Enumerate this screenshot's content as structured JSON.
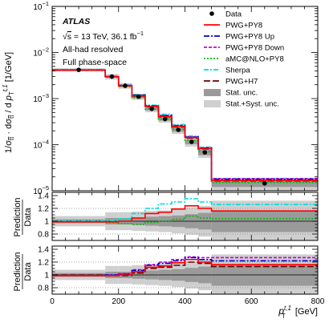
{
  "chart_data": {
    "type": "line",
    "x_edges": [
      0,
      160,
      200,
      240,
      280,
      320,
      360,
      400,
      440,
      480,
      800
    ],
    "x_centers": [
      80,
      180,
      220,
      260,
      300,
      340,
      380,
      420,
      460,
      640
    ],
    "xlim": [
      0,
      800
    ],
    "x_ticks": [
      0,
      200,
      400,
      600,
      800
    ],
    "x_tick_labels": [
      "0",
      "200",
      "400",
      "600",
      "800"
    ],
    "x_label_main": "p",
    "x_label_sub": "T",
    "x_label_sup": "t,1",
    "x_label_unit": " [GeV]",
    "top_panel": {
      "y_scale": "log",
      "ylim": [
        1e-05,
        0.1
      ],
      "y_ticks": [
        1e-05,
        0.0001,
        0.001,
        0.01,
        0.1
      ],
      "y_tick_labels": [
        {
          "base": "10",
          "exp": "−5"
        },
        {
          "base": "10",
          "exp": "−4"
        },
        {
          "base": "10",
          "exp": "−3"
        },
        {
          "base": "10",
          "exp": "−2"
        },
        {
          "base": "10",
          "exp": "−1"
        }
      ],
      "y_label": "1/σ_tt · dσ_tt / d p_T^t,1 [1/GeV]",
      "data": [
        0.0042,
        0.003,
        0.0019,
        0.0011,
        0.0006,
        0.00036,
        0.00021,
        0.000115,
        6.8e-05,
        1.45e-05
      ],
      "stat_unc_rel": [
        0.03,
        0.05,
        0.05,
        0.06,
        0.07,
        0.08,
        0.09,
        0.11,
        0.13,
        0.17
      ],
      "total_unc_rel": [
        0.08,
        0.14,
        0.14,
        0.15,
        0.16,
        0.17,
        0.19,
        0.21,
        0.24,
        0.32
      ]
    },
    "ratio_panel_1": {
      "ylabel_top": "Prediction",
      "ylabel_bottom": "Data",
      "ylim": [
        0.7,
        1.45
      ],
      "y_ticks": [
        0.8,
        1.0,
        1.2,
        1.4
      ],
      "y_tick_labels": [
        "0.8",
        "1",
        "1.2",
        "1.4"
      ],
      "stat_band": [
        0.03,
        0.05,
        0.05,
        0.06,
        0.07,
        0.08,
        0.09,
        0.11,
        0.13,
        0.17
      ],
      "total_band": [
        0.08,
        0.14,
        0.14,
        0.15,
        0.16,
        0.17,
        0.19,
        0.21,
        0.24,
        0.32
      ],
      "series": [
        {
          "name": "PWG+PY8",
          "values": [
            0.99,
            0.99,
            1.0,
            1.05,
            1.12,
            1.14,
            1.19,
            1.24,
            1.2,
            1.16
          ]
        },
        {
          "name": "Sherpa",
          "values": [
            1.0,
            1.0,
            1.04,
            1.12,
            1.2,
            1.27,
            1.3,
            1.35,
            1.3,
            1.26
          ]
        },
        {
          "name": "aMC@NLO+PY8",
          "values": [
            0.99,
            0.98,
            0.96,
            0.95,
            0.98,
            1.0,
            1.03,
            1.08,
            1.05,
            1.04
          ]
        }
      ]
    },
    "ratio_panel_2": {
      "ylabel_top": "Prediction",
      "ylabel_bottom": "Data",
      "ylim": [
        0.7,
        1.45
      ],
      "y_ticks": [
        0.8,
        1.0,
        1.2,
        1.4
      ],
      "y_tick_labels": [
        "0.8",
        "1",
        "1.2",
        "1.4"
      ],
      "stat_band": [
        0.03,
        0.05,
        0.05,
        0.06,
        0.07,
        0.08,
        0.09,
        0.11,
        0.13,
        0.17
      ],
      "total_band": [
        0.08,
        0.14,
        0.14,
        0.15,
        0.16,
        0.17,
        0.19,
        0.21,
        0.24,
        0.32
      ],
      "series": [
        {
          "name": "PWG+PY8",
          "values": [
            0.99,
            0.99,
            1.0,
            1.05,
            1.12,
            1.14,
            1.19,
            1.24,
            1.2,
            1.16
          ]
        },
        {
          "name": "PWG+PY8 Up",
          "values": [
            0.99,
            1.0,
            1.01,
            1.07,
            1.15,
            1.18,
            1.22,
            1.27,
            1.24,
            1.22
          ]
        },
        {
          "name": "PWG+PY8 Down",
          "values": [
            0.99,
            1.0,
            1.02,
            1.08,
            1.16,
            1.2,
            1.24,
            1.28,
            1.27,
            1.27
          ]
        },
        {
          "name": "PWG+H7",
          "values": [
            1.0,
            0.99,
            0.99,
            1.03,
            1.1,
            1.12,
            1.15,
            1.2,
            1.18,
            1.13
          ]
        }
      ]
    },
    "series_styles": [
      {
        "name": "PWG+PY8",
        "color": "#ff0000",
        "dash": ""
      },
      {
        "name": "PWG+PY8 Up",
        "color": "#0000cc",
        "dash": "7,2,2,2"
      },
      {
        "name": "PWG+PY8 Down",
        "color": "#cc00cc",
        "dash": "4,2"
      },
      {
        "name": "aMC@NLO+PY8",
        "color": "#00bb00",
        "dash": "2,2"
      },
      {
        "name": "Sherpa",
        "color": "#00dddd",
        "dash": "6,2,2,2"
      },
      {
        "name": "PWG+H7",
        "color": "#660000",
        "dash": "8,3"
      }
    ],
    "colors": {
      "stat_band": "#9a9a9a",
      "total_band": "#cfcfcf",
      "data_marker": "#000000"
    }
  },
  "annotation": {
    "atlas": "ATLAS",
    "sqrt_s": "s",
    "energy": " = 13 TeV, 36.1 fb",
    "lumi_exp": "−1",
    "channel": "All-had resolved",
    "phase_space": "Full phase-space"
  },
  "legend": {
    "data": "Data",
    "pwg_py8": "PWG+PY8",
    "pwg_py8_up": "PWG+PY8 Up",
    "pwg_py8_down": "PWG+PY8 Down",
    "amcnlo": "aMC@NLO+PY8",
    "sherpa": "Sherpa",
    "pwg_h7": "PWG+H7",
    "stat_unc": "Stat. unc.",
    "stat_syst_unc": "Stat.+Syst. unc."
  }
}
